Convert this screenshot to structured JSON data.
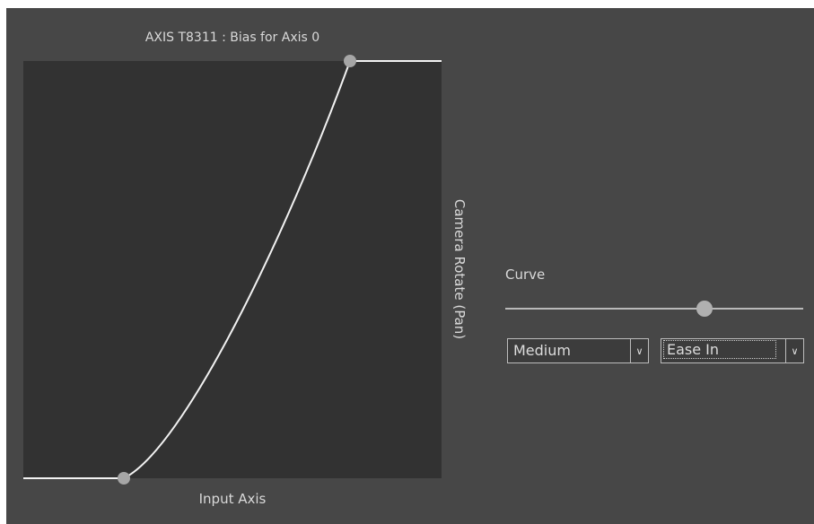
{
  "graph": {
    "title": "AXIS T8311 : Bias for Axis 0",
    "x_label": "Input Axis",
    "y_label": "Camera Rotate (Pan)",
    "background_color": "#323232",
    "curve_color": "#f2f2f2",
    "handle_color": "#a6a6a6"
  },
  "controls": {
    "curve_label": "Curve",
    "curve_slider": {
      "value": 0.67
    },
    "strength_select": {
      "value": "Medium",
      "arrow_icon": "chevron-down-icon"
    },
    "easing_select": {
      "value": "Ease In",
      "arrow_icon": "chevron-down-icon"
    }
  }
}
